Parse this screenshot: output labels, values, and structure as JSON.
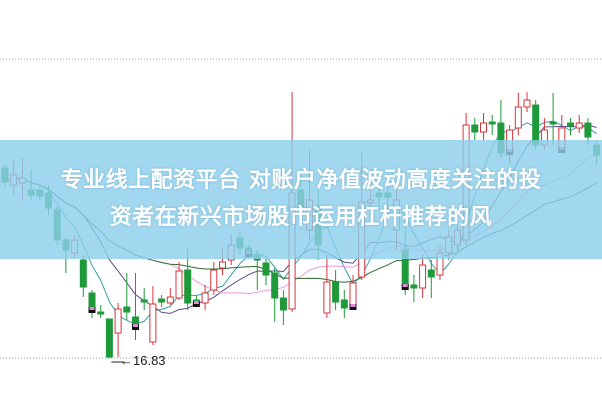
{
  "headline": {
    "line1": "专业线上配资平台 对账户净值波动高度关注的投",
    "line2": "资者在新兴市场股市运用杠杆推荐的风"
  },
  "chart_data": {
    "type": "candlestick",
    "title": "",
    "xlabel": "",
    "ylabel": "",
    "ylim": [
      14.68,
      34.73
    ],
    "grid": "dotted horizontal lines",
    "reference_lines": [
      31.78,
      16.83
    ],
    "low_annotation": {
      "value": 16.83,
      "label": "16.83",
      "candle_index": 12
    },
    "colors": {
      "up": "#d9343b",
      "down": "#1f9a3a",
      "banner": "#8cceec",
      "ma": [
        "#3aa0a8",
        "#5a4f86",
        "#e79ce0",
        "#2f6a2f"
      ]
    },
    "ma_periods": [
      5,
      10,
      20,
      30
    ],
    "marker_indices": [
      10,
      15,
      22,
      28,
      40,
      46,
      58,
      64
    ],
    "candles": [
      [
        26.33,
        26.48,
        25.43,
        25.63
      ],
      [
        25.48,
        26.73,
        24.98,
        25.98
      ],
      [
        25.58,
        26.83,
        24.73,
        25.83
      ],
      [
        25.23,
        26.23,
        24.73,
        24.98
      ],
      [
        25.23,
        25.48,
        24.73,
        24.93
      ],
      [
        25.08,
        25.48,
        23.98,
        24.33
      ],
      [
        24.23,
        24.48,
        22.48,
        22.73
      ],
      [
        22.73,
        22.83,
        21.08,
        22.23
      ],
      [
        22.08,
        22.98,
        21.83,
        22.73
      ],
      [
        21.73,
        21.98,
        19.88,
        20.38
      ],
      [
        20.08,
        20.23,
        18.83,
        19.23
      ],
      [
        19.13,
        19.48,
        18.83,
        19.03
      ],
      [
        18.78,
        18.78,
        16.83,
        16.88
      ],
      [
        18.08,
        19.58,
        16.88,
        19.28
      ],
      [
        19.38,
        21.08,
        18.73,
        19.13
      ],
      [
        18.88,
        21.08,
        17.73,
        18.38
      ],
      [
        19.73,
        20.33,
        19.23,
        19.63
      ],
      [
        17.63,
        20.43,
        17.48,
        19.53
      ],
      [
        19.78,
        19.98,
        19.38,
        19.63
      ],
      [
        19.58,
        20.33,
        19.48,
        19.88
      ],
      [
        19.83,
        21.63,
        19.73,
        21.18
      ],
      [
        21.23,
        22.38,
        19.23,
        19.58
      ],
      [
        19.73,
        19.98,
        19.43,
        19.53
      ],
      [
        19.58,
        20.48,
        19.23,
        20.08
      ],
      [
        20.23,
        21.63,
        19.98,
        21.23
      ],
      [
        21.33,
        22.38,
        20.98,
        21.63
      ],
      [
        21.73,
        22.98,
        21.48,
        22.48
      ],
      [
        22.83,
        23.13,
        21.98,
        22.33
      ],
      [
        22.33,
        22.48,
        21.83,
        22.03
      ],
      [
        21.98,
        22.23,
        20.23,
        21.73
      ],
      [
        21.58,
        21.83,
        20.48,
        20.98
      ],
      [
        21.08,
        21.33,
        18.63,
        19.83
      ],
      [
        19.83,
        20.23,
        18.48,
        19.23
      ],
      [
        19.28,
        30.13,
        19.13,
        25.08
      ],
      [
        25.23,
        25.98,
        23.23,
        24.23
      ],
      [
        23.23,
        27.23,
        22.73,
        24.73
      ],
      [
        24.23,
        25.23,
        21.73,
        22.48
      ],
      [
        19.08,
        21.98,
        18.83,
        20.63
      ],
      [
        20.63,
        21.23,
        19.23,
        19.63
      ],
      [
        19.73,
        20.23,
        18.83,
        19.33
      ],
      [
        19.38,
        20.98,
        19.23,
        20.58
      ],
      [
        20.88,
        27.13,
        20.73,
        24.63
      ],
      [
        24.58,
        25.73,
        23.98,
        24.73
      ],
      [
        25.08,
        25.48,
        24.23,
        24.88
      ],
      [
        25.08,
        25.48,
        24.23,
        24.88
      ],
      [
        23.23,
        25.23,
        22.23,
        24.73
      ],
      [
        22.23,
        23.73,
        19.98,
        20.38
      ],
      [
        20.48,
        20.98,
        19.63,
        20.33
      ],
      [
        20.33,
        21.98,
        19.83,
        21.48
      ],
      [
        21.23,
        21.73,
        19.83,
        20.88
      ],
      [
        20.98,
        22.48,
        20.73,
        22.08
      ],
      [
        22.08,
        23.23,
        21.73,
        22.88
      ],
      [
        22.48,
        23.48,
        22.23,
        23.23
      ],
      [
        22.73,
        29.08,
        22.48,
        28.48
      ],
      [
        28.48,
        28.83,
        27.73,
        28.13
      ],
      [
        28.13,
        29.08,
        27.73,
        28.58
      ],
      [
        28.63,
        28.98,
        27.98,
        28.53
      ],
      [
        28.58,
        29.73,
        26.83,
        27.08
      ],
      [
        27.13,
        28.48,
        26.58,
        28.23
      ],
      [
        28.33,
        30.08,
        27.98,
        29.38
      ],
      [
        29.38,
        30.13,
        29.13,
        29.73
      ],
      [
        29.48,
        29.73,
        27.23,
        27.48
      ],
      [
        27.48,
        28.83,
        27.23,
        28.23
      ],
      [
        28.63,
        30.08,
        27.48,
        28.53
      ],
      [
        27.23,
        28.98,
        27.13,
        28.33
      ],
      [
        28.58,
        28.83,
        27.98,
        28.43
      ],
      [
        28.33,
        28.98,
        28.08,
        28.58
      ],
      [
        28.58,
        28.83,
        27.48,
        27.88
      ],
      [
        27.48,
        27.73,
        26.48,
        26.98
      ]
    ]
  }
}
